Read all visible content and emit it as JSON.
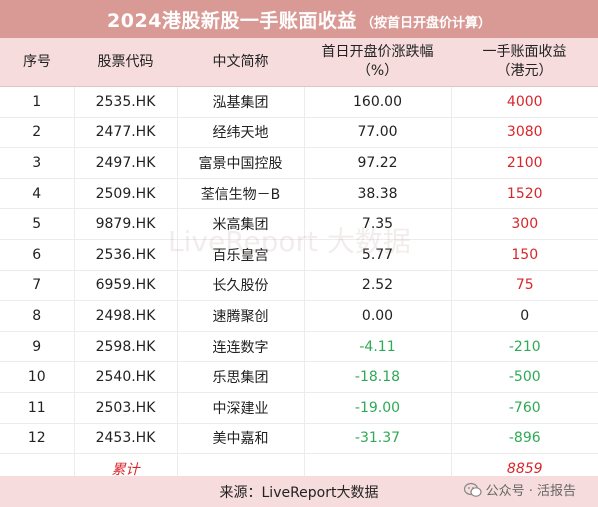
{
  "title": {
    "main": "2024港股新股一手账面收益",
    "sub": "（按首日开盘价计算）"
  },
  "headers": {
    "index": "序号",
    "code": "股票代码",
    "name": "中文简称",
    "change_line1": "首日开盘价涨跌幅",
    "change_line2": "（%）",
    "gain_line1": "一手账面收益",
    "gain_line2": "（港元）"
  },
  "rows": [
    {
      "index": "1",
      "code": "2535.HK",
      "name": "泓基集团",
      "change": "160.00",
      "gain": "4000"
    },
    {
      "index": "2",
      "code": "2477.HK",
      "name": "经纬天地",
      "change": "77.00",
      "gain": "3080"
    },
    {
      "index": "3",
      "code": "2497.HK",
      "name": "富景中国控股",
      "change": "97.22",
      "gain": "2100"
    },
    {
      "index": "4",
      "code": "2509.HK",
      "name": "荃信生物－B",
      "change": "38.38",
      "gain": "1520"
    },
    {
      "index": "5",
      "code": "9879.HK",
      "name": "米高集团",
      "change": "7.35",
      "gain": "300"
    },
    {
      "index": "6",
      "code": "2536.HK",
      "name": "百乐皇宫",
      "change": "5.77",
      "gain": "150"
    },
    {
      "index": "7",
      "code": "6959.HK",
      "name": "长久股份",
      "change": "2.52",
      "gain": "75"
    },
    {
      "index": "8",
      "code": "2498.HK",
      "name": "速腾聚创",
      "change": "0.00",
      "gain": "0"
    },
    {
      "index": "9",
      "code": "2598.HK",
      "name": "连连数字",
      "change": "-4.11",
      "gain": "-210"
    },
    {
      "index": "10",
      "code": "2540.HK",
      "name": "乐思集团",
      "change": "-18.18",
      "gain": "-500"
    },
    {
      "index": "11",
      "code": "2503.HK",
      "name": "中深建业",
      "change": "-19.00",
      "gain": "-760"
    },
    {
      "index": "12",
      "code": "2453.HK",
      "name": "美中嘉和",
      "change": "-31.37",
      "gain": "-896"
    }
  ],
  "total": {
    "label": "累计",
    "value": "8859"
  },
  "source": "来源：LiveReport大数据",
  "watermark": "LiveReport 大数据",
  "wechat_label": "公众号 · 活报告",
  "colors": {
    "title_bg": "#d99a95",
    "header_bg": "#f6dcdc",
    "positive": "#d9262b",
    "negative": "#2eaa56"
  }
}
